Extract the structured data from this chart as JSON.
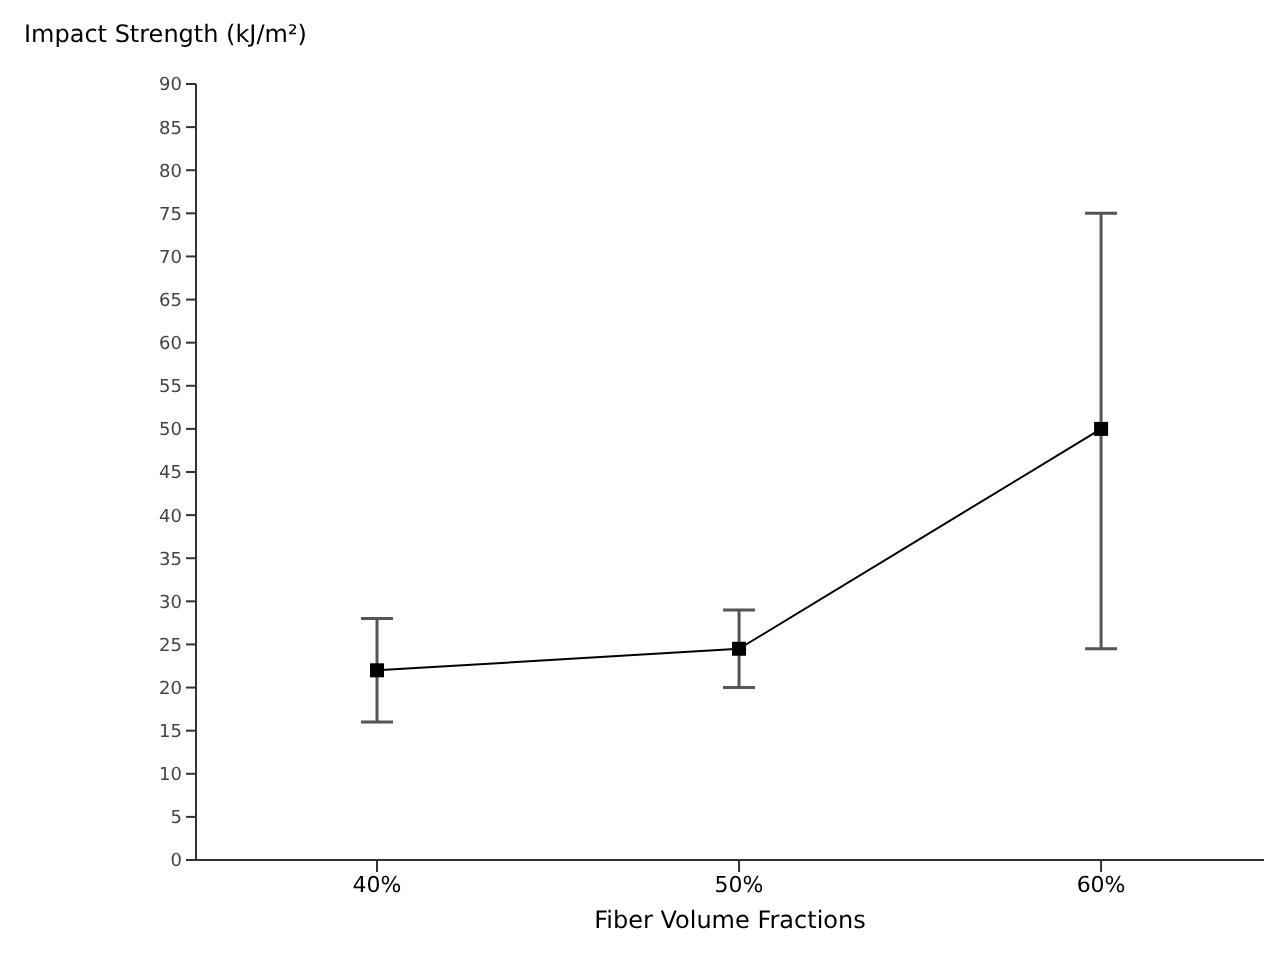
{
  "chart_data": {
    "type": "line",
    "ylabel": "Impact Strength (kJ/m²)",
    "xlabel": "Fiber Volume Fractions",
    "categories": [
      "40%",
      "50%",
      "60%"
    ],
    "series": [
      {
        "color": "#000000",
        "values": [
          22,
          24.5,
          50
        ],
        "errors": [
          [
            16,
            28
          ],
          [
            20,
            29
          ],
          [
            24.5,
            75
          ]
        ]
      }
    ],
    "ylim": [
      0,
      90
    ],
    "yticks": [
      0,
      5,
      10,
      15,
      20,
      25,
      30,
      35,
      40,
      45,
      50,
      55,
      60,
      65,
      70,
      75,
      80,
      85,
      90
    ],
    "marker": "square",
    "grid": false,
    "legend": false
  }
}
